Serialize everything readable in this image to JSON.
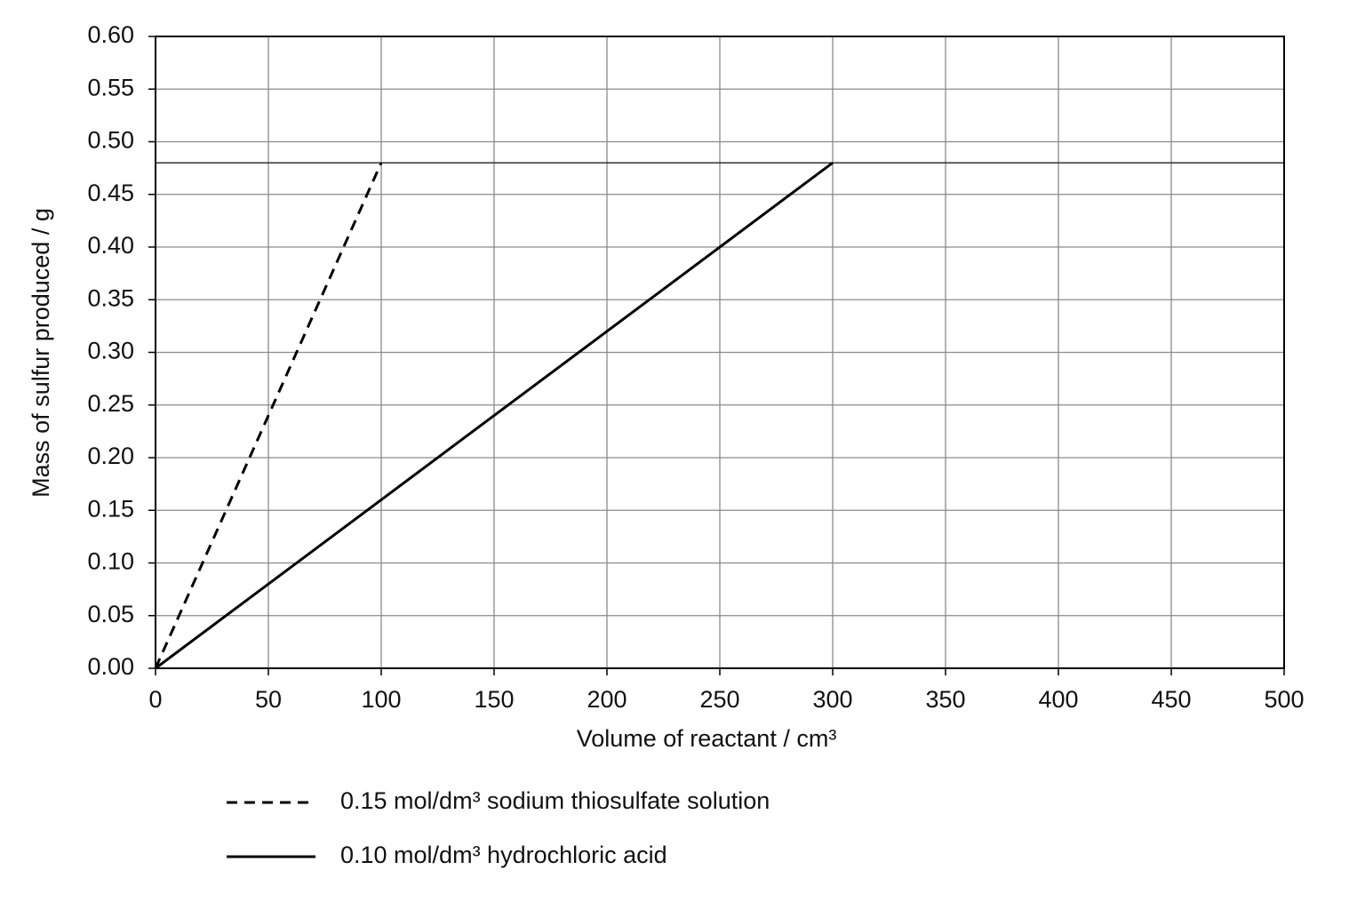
{
  "chart_data": {
    "type": "line",
    "xlabel": "Volume of reactant / cm³",
    "ylabel": "Mass of sulfur produced / g",
    "xlim": [
      0,
      500
    ],
    "xticks": [
      0,
      50,
      100,
      150,
      200,
      250,
      300,
      350,
      400,
      450,
      500
    ],
    "ylim": [
      0,
      0.6
    ],
    "yticks": [
      {
        "value": 0,
        "label": "0.00"
      },
      0.05,
      {
        "value": 0.1,
        "label": "0.10"
      },
      0.15,
      {
        "value": 0.2,
        "label": "0.20"
      },
      0.25,
      {
        "value": 0.3,
        "label": "0.30"
      },
      0.35,
      {
        "value": 0.4,
        "label": "0.40"
      },
      0.45,
      {
        "value": 0.5,
        "label": "0.50"
      },
      0.55,
      {
        "value": 0.6,
        "label": "0.60"
      }
    ],
    "grid": true,
    "reference_line": 0.48,
    "legend": "bottom",
    "series": [
      {
        "name": "0.15 mol/dm³ sodium thiosulfate solution",
        "color": "#000000",
        "line_style": "dashed",
        "x": [
          0,
          100
        ],
        "values": [
          0,
          0.48
        ]
      },
      {
        "name": "0.10 mol/dm³ hydrochloric acid",
        "color": "#000000",
        "line_style": "solid",
        "x": [
          0,
          300
        ],
        "values": [
          0,
          0.48
        ]
      }
    ]
  }
}
